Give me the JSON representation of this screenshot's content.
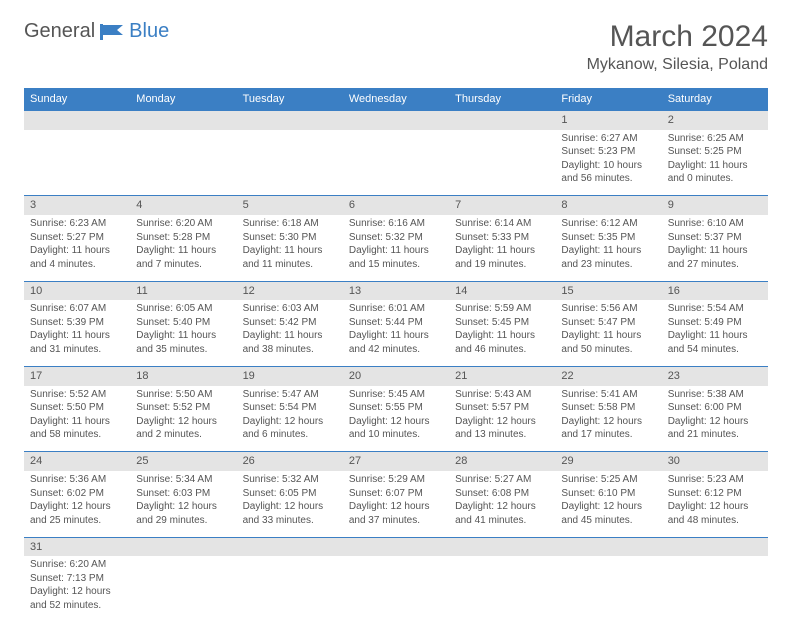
{
  "logo": {
    "part1": "General",
    "part2": "Blue"
  },
  "title": {
    "month": "March 2024",
    "location": "Mykanow, Silesia, Poland"
  },
  "weekdays": [
    "Sunday",
    "Monday",
    "Tuesday",
    "Wednesday",
    "Thursday",
    "Friday",
    "Saturday"
  ],
  "colors": {
    "header_bg": "#3b7fc4",
    "header_fg": "#ffffff",
    "daynum_bg": "#e4e4e4",
    "text": "#555555",
    "rule": "#3b7fc4"
  },
  "weeks": [
    {
      "nums": [
        "",
        "",
        "",
        "",
        "",
        "1",
        "2"
      ],
      "info": [
        "",
        "",
        "",
        "",
        "",
        "Sunrise: 6:27 AM\nSunset: 5:23 PM\nDaylight: 10 hours and 56 minutes.",
        "Sunrise: 6:25 AM\nSunset: 5:25 PM\nDaylight: 11 hours and 0 minutes."
      ]
    },
    {
      "nums": [
        "3",
        "4",
        "5",
        "6",
        "7",
        "8",
        "9"
      ],
      "info": [
        "Sunrise: 6:23 AM\nSunset: 5:27 PM\nDaylight: 11 hours and 4 minutes.",
        "Sunrise: 6:20 AM\nSunset: 5:28 PM\nDaylight: 11 hours and 7 minutes.",
        "Sunrise: 6:18 AM\nSunset: 5:30 PM\nDaylight: 11 hours and 11 minutes.",
        "Sunrise: 6:16 AM\nSunset: 5:32 PM\nDaylight: 11 hours and 15 minutes.",
        "Sunrise: 6:14 AM\nSunset: 5:33 PM\nDaylight: 11 hours and 19 minutes.",
        "Sunrise: 6:12 AM\nSunset: 5:35 PM\nDaylight: 11 hours and 23 minutes.",
        "Sunrise: 6:10 AM\nSunset: 5:37 PM\nDaylight: 11 hours and 27 minutes."
      ]
    },
    {
      "nums": [
        "10",
        "11",
        "12",
        "13",
        "14",
        "15",
        "16"
      ],
      "info": [
        "Sunrise: 6:07 AM\nSunset: 5:39 PM\nDaylight: 11 hours and 31 minutes.",
        "Sunrise: 6:05 AM\nSunset: 5:40 PM\nDaylight: 11 hours and 35 minutes.",
        "Sunrise: 6:03 AM\nSunset: 5:42 PM\nDaylight: 11 hours and 38 minutes.",
        "Sunrise: 6:01 AM\nSunset: 5:44 PM\nDaylight: 11 hours and 42 minutes.",
        "Sunrise: 5:59 AM\nSunset: 5:45 PM\nDaylight: 11 hours and 46 minutes.",
        "Sunrise: 5:56 AM\nSunset: 5:47 PM\nDaylight: 11 hours and 50 minutes.",
        "Sunrise: 5:54 AM\nSunset: 5:49 PM\nDaylight: 11 hours and 54 minutes."
      ]
    },
    {
      "nums": [
        "17",
        "18",
        "19",
        "20",
        "21",
        "22",
        "23"
      ],
      "info": [
        "Sunrise: 5:52 AM\nSunset: 5:50 PM\nDaylight: 11 hours and 58 minutes.",
        "Sunrise: 5:50 AM\nSunset: 5:52 PM\nDaylight: 12 hours and 2 minutes.",
        "Sunrise: 5:47 AM\nSunset: 5:54 PM\nDaylight: 12 hours and 6 minutes.",
        "Sunrise: 5:45 AM\nSunset: 5:55 PM\nDaylight: 12 hours and 10 minutes.",
        "Sunrise: 5:43 AM\nSunset: 5:57 PM\nDaylight: 12 hours and 13 minutes.",
        "Sunrise: 5:41 AM\nSunset: 5:58 PM\nDaylight: 12 hours and 17 minutes.",
        "Sunrise: 5:38 AM\nSunset: 6:00 PM\nDaylight: 12 hours and 21 minutes."
      ]
    },
    {
      "nums": [
        "24",
        "25",
        "26",
        "27",
        "28",
        "29",
        "30"
      ],
      "info": [
        "Sunrise: 5:36 AM\nSunset: 6:02 PM\nDaylight: 12 hours and 25 minutes.",
        "Sunrise: 5:34 AM\nSunset: 6:03 PM\nDaylight: 12 hours and 29 minutes.",
        "Sunrise: 5:32 AM\nSunset: 6:05 PM\nDaylight: 12 hours and 33 minutes.",
        "Sunrise: 5:29 AM\nSunset: 6:07 PM\nDaylight: 12 hours and 37 minutes.",
        "Sunrise: 5:27 AM\nSunset: 6:08 PM\nDaylight: 12 hours and 41 minutes.",
        "Sunrise: 5:25 AM\nSunset: 6:10 PM\nDaylight: 12 hours and 45 minutes.",
        "Sunrise: 5:23 AM\nSunset: 6:12 PM\nDaylight: 12 hours and 48 minutes."
      ]
    },
    {
      "nums": [
        "31",
        "",
        "",
        "",
        "",
        "",
        ""
      ],
      "info": [
        "Sunrise: 6:20 AM\nSunset: 7:13 PM\nDaylight: 12 hours and 52 minutes.",
        "",
        "",
        "",
        "",
        "",
        ""
      ]
    }
  ]
}
